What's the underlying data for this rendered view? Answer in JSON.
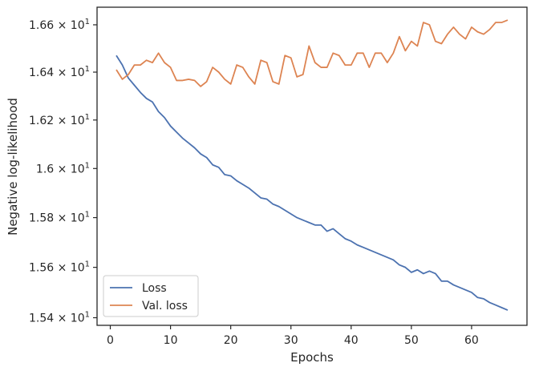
{
  "chart_data": {
    "type": "line",
    "xlabel": "Epochs",
    "ylabel": "Negative log-likelihood",
    "xlim": [
      -2.2,
      69.2
    ],
    "ylim": [
      15.37,
      16.675
    ],
    "y_scale": "log",
    "grid": false,
    "legend_position": "lower-left",
    "x_ticks": [
      0,
      10,
      20,
      30,
      40,
      50,
      60
    ],
    "y_ticks": [
      {
        "value": 15.4,
        "mantissa": "1.54",
        "base": "10",
        "exp": "1"
      },
      {
        "value": 15.6,
        "mantissa": "1.56",
        "base": "10",
        "exp": "1"
      },
      {
        "value": 15.8,
        "mantissa": "1.58",
        "base": "10",
        "exp": "1"
      },
      {
        "value": 16.0,
        "mantissa": "1.6",
        "base": "10",
        "exp": "1"
      },
      {
        "value": 16.2,
        "mantissa": "1.62",
        "base": "10",
        "exp": "1"
      },
      {
        "value": 16.4,
        "mantissa": "1.64",
        "base": "10",
        "exp": "1"
      },
      {
        "value": 16.6,
        "mantissa": "1.66",
        "base": "10",
        "exp": "1"
      }
    ],
    "x": [
      1,
      2,
      3,
      4,
      5,
      6,
      7,
      8,
      9,
      10,
      11,
      12,
      13,
      14,
      15,
      16,
      17,
      18,
      19,
      20,
      21,
      22,
      23,
      24,
      25,
      26,
      27,
      28,
      29,
      30,
      31,
      32,
      33,
      34,
      35,
      36,
      37,
      38,
      39,
      40,
      41,
      42,
      43,
      44,
      45,
      46,
      47,
      48,
      49,
      50,
      51,
      52,
      53,
      54,
      55,
      56,
      57,
      58,
      59,
      60,
      61,
      62,
      63,
      64,
      65,
      66
    ],
    "series": [
      {
        "name": "Loss",
        "color": "#4c72b0",
        "values": [
          16.47,
          16.43,
          16.375,
          16.345,
          16.315,
          16.29,
          16.275,
          16.235,
          16.21,
          16.175,
          16.15,
          16.125,
          16.105,
          16.085,
          16.06,
          16.045,
          16.015,
          16.005,
          15.975,
          15.97,
          15.95,
          15.935,
          15.92,
          15.9,
          15.88,
          15.875,
          15.855,
          15.845,
          15.83,
          15.815,
          15.8,
          15.79,
          15.78,
          15.77,
          15.77,
          15.745,
          15.755,
          15.735,
          15.715,
          15.705,
          15.69,
          15.68,
          15.67,
          15.66,
          15.65,
          15.64,
          15.63,
          15.61,
          15.6,
          15.58,
          15.59,
          15.575,
          15.585,
          15.575,
          15.545,
          15.545,
          15.53,
          15.52,
          15.51,
          15.5,
          15.48,
          15.475,
          15.46,
          15.45,
          15.44,
          15.43
        ]
      },
      {
        "name": "Val. loss",
        "color": "#dd8452",
        "values": [
          16.41,
          16.37,
          16.39,
          16.43,
          16.43,
          16.45,
          16.44,
          16.48,
          16.44,
          16.42,
          16.365,
          16.365,
          16.37,
          16.365,
          16.34,
          16.36,
          16.42,
          16.4,
          16.37,
          16.35,
          16.43,
          16.42,
          16.38,
          16.35,
          16.45,
          16.44,
          16.36,
          16.35,
          16.47,
          16.46,
          16.38,
          16.39,
          16.51,
          16.44,
          16.42,
          16.42,
          16.48,
          16.47,
          16.43,
          16.43,
          16.48,
          16.48,
          16.42,
          16.48,
          16.48,
          16.44,
          16.48,
          16.55,
          16.49,
          16.53,
          16.51,
          16.61,
          16.6,
          16.53,
          16.52,
          16.56,
          16.59,
          16.56,
          16.54,
          16.59,
          16.57,
          16.56,
          16.58,
          16.61,
          16.61,
          16.62
        ]
      }
    ]
  }
}
